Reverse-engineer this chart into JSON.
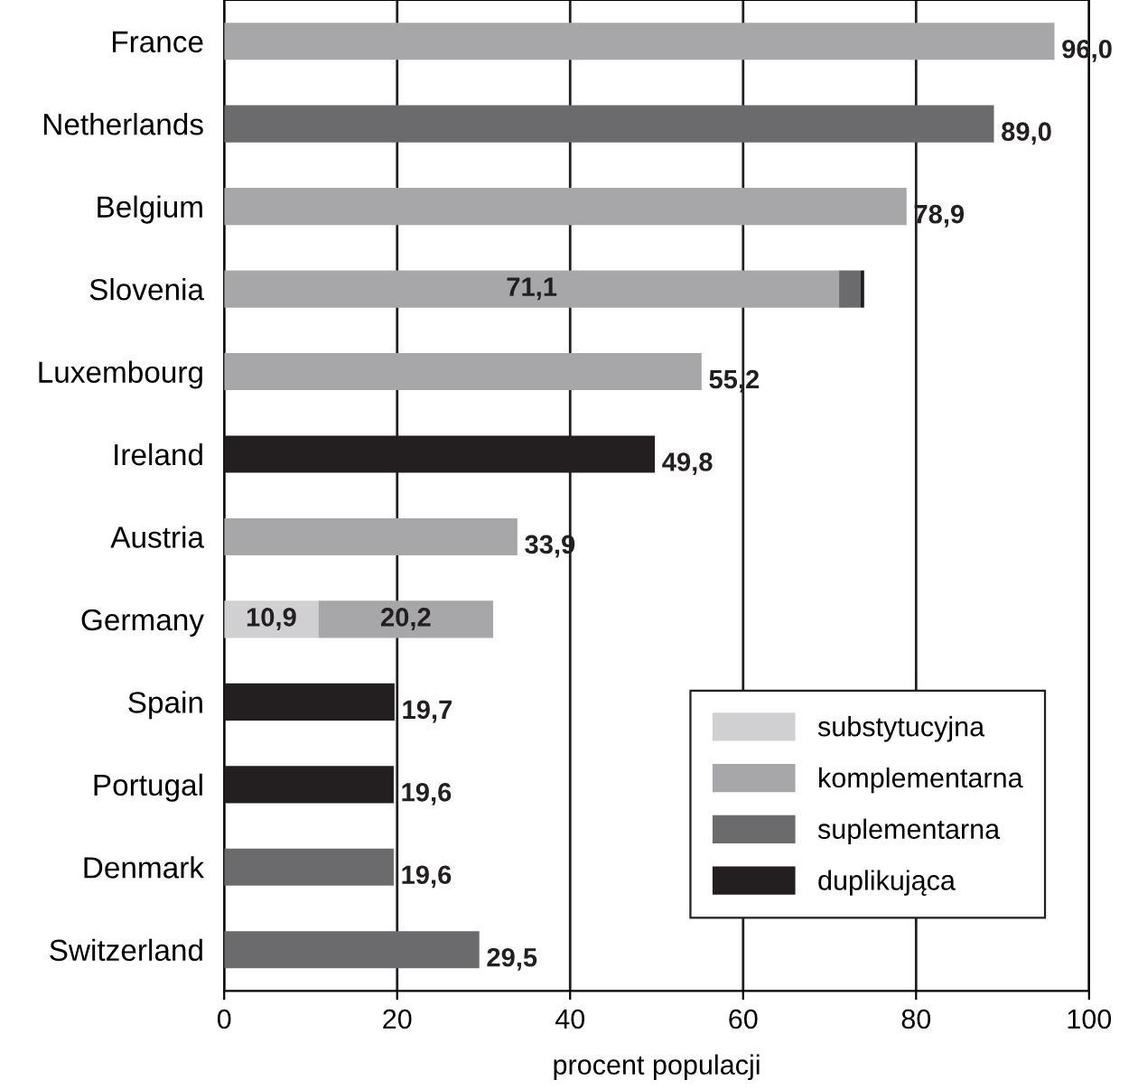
{
  "chart_data": {
    "type": "bar",
    "orientation": "horizontal",
    "stacked": true,
    "xlabel": "procent populacji",
    "categories": [
      "France",
      "Netherlands",
      "Belgium",
      "Slovenia",
      "Luxembourg",
      "Ireland",
      "Austria",
      "Germany",
      "Spain",
      "Portugal",
      "Denmark",
      "Switzerland"
    ],
    "series": [
      {
        "name": "substytucyjna",
        "color": "#d0d0d2",
        "values": [
          null,
          null,
          null,
          null,
          null,
          null,
          null,
          10.9,
          null,
          null,
          null,
          null
        ],
        "value_labels": [
          null,
          null,
          null,
          null,
          null,
          null,
          null,
          "10,9",
          null,
          null,
          null,
          null
        ]
      },
      {
        "name": "komplementarna",
        "color": "#a7a7a9",
        "values": [
          96.0,
          null,
          78.9,
          71.1,
          55.2,
          null,
          33.9,
          20.2,
          null,
          null,
          null,
          null
        ],
        "value_labels": [
          "96,0",
          null,
          "78,9",
          "71,1",
          "55,2",
          null,
          "33,9",
          "20,2",
          null,
          null,
          null,
          null
        ]
      },
      {
        "name": "suplementarna",
        "color": "#6b6b6d",
        "values": [
          null,
          89.0,
          null,
          2.5,
          null,
          null,
          null,
          null,
          null,
          null,
          19.6,
          29.5
        ],
        "value_labels": [
          null,
          "89,0",
          null,
          null,
          null,
          null,
          null,
          null,
          null,
          null,
          "19,6",
          "29,5"
        ]
      },
      {
        "name": "duplikująca",
        "color": "#231f20",
        "values": [
          null,
          null,
          null,
          0.4,
          null,
          49.8,
          null,
          null,
          19.7,
          19.6,
          null,
          null
        ],
        "value_labels": [
          null,
          null,
          null,
          null,
          null,
          "49,8",
          null,
          null,
          "19,7",
          "19,6",
          null,
          null
        ]
      }
    ],
    "xlim": [
      0,
      100
    ],
    "xticks": [
      0,
      20,
      40,
      60,
      80,
      100
    ],
    "grid": "x",
    "legend": "bottom right"
  }
}
